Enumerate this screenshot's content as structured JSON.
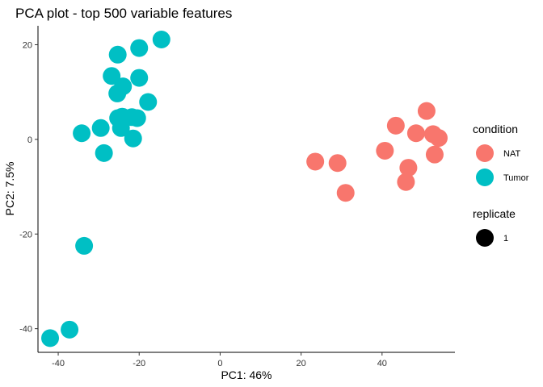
{
  "chart_data": {
    "type": "scatter",
    "title": "PCA plot - top 500 variable features",
    "xlabel": "PC1: 46%",
    "ylabel": "PC2: 7.5%",
    "xlim": [
      -45,
      58
    ],
    "ylim": [
      -45,
      24
    ],
    "xticks": [
      {
        "value": -40,
        "label": "-40"
      },
      {
        "value": -20,
        "label": "-20"
      },
      {
        "value": 0,
        "label": "0"
      },
      {
        "value": 20,
        "label": "20"
      },
      {
        "value": 40,
        "label": "40"
      }
    ],
    "yticks": [
      {
        "value": 20,
        "label": "20"
      },
      {
        "value": 0,
        "label": "0"
      },
      {
        "value": -20,
        "label": "-20"
      },
      {
        "value": -40,
        "label": "-40"
      }
    ],
    "grid": false,
    "legend_position": "right",
    "legends": [
      {
        "title": "condition",
        "entries": [
          {
            "label": "NAT",
            "color": "#F8766D"
          },
          {
            "label": "Tumor",
            "color": "#00BFC4"
          }
        ]
      },
      {
        "title": "replicate",
        "entries": [
          {
            "label": "1",
            "color": "#000000"
          }
        ]
      }
    ],
    "series": [
      {
        "name": "NAT",
        "color": "#F8766D",
        "points": [
          {
            "x": 23.5,
            "y": -4.7
          },
          {
            "x": 29.0,
            "y": -5.0
          },
          {
            "x": 31.0,
            "y": -11.3
          },
          {
            "x": 40.7,
            "y": -2.4
          },
          {
            "x": 43.4,
            "y": 2.9
          },
          {
            "x": 45.9,
            "y": -9.0
          },
          {
            "x": 46.5,
            "y": -6.0
          },
          {
            "x": 48.4,
            "y": 1.3
          },
          {
            "x": 51.0,
            "y": 6.0
          },
          {
            "x": 52.6,
            "y": 1.1
          },
          {
            "x": 53.0,
            "y": -3.2
          },
          {
            "x": 54.0,
            "y": 0.3
          }
        ]
      },
      {
        "name": "Tumor",
        "color": "#00BFC4",
        "points": [
          {
            "x": -42.0,
            "y": -42.0
          },
          {
            "x": -37.2,
            "y": -40.2
          },
          {
            "x": -33.6,
            "y": -22.5
          },
          {
            "x": -34.2,
            "y": 1.3
          },
          {
            "x": -29.5,
            "y": 2.4
          },
          {
            "x": -28.7,
            "y": -2.9
          },
          {
            "x": -26.8,
            "y": 13.4
          },
          {
            "x": -25.3,
            "y": 17.9
          },
          {
            "x": -24.0,
            "y": 11.2
          },
          {
            "x": -25.4,
            "y": 9.7
          },
          {
            "x": -25.2,
            "y": 4.5
          },
          {
            "x": -24.2,
            "y": 4.8
          },
          {
            "x": -24.5,
            "y": 2.4
          },
          {
            "x": -21.8,
            "y": 4.7
          },
          {
            "x": -20.5,
            "y": 4.5
          },
          {
            "x": -21.5,
            "y": 0.2
          },
          {
            "x": -20.0,
            "y": 13.0
          },
          {
            "x": -20.0,
            "y": 19.3
          },
          {
            "x": -17.8,
            "y": 7.9
          },
          {
            "x": -14.5,
            "y": 21.1
          }
        ]
      }
    ]
  }
}
